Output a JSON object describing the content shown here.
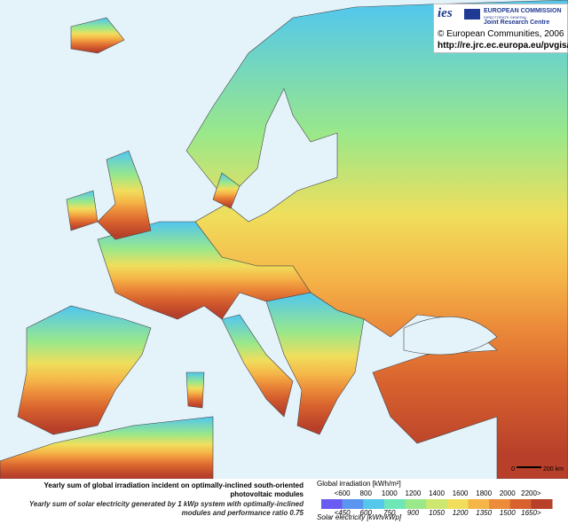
{
  "header": {
    "logo": "ies",
    "commission": "EUROPEAN COMMISSION",
    "directorate": "DIRECTORATE-GENERAL",
    "centre": "Joint Research Centre",
    "copyright": "© European Communities, 2006",
    "url": "http://re.jrc.ec.europa.eu/pvgis/"
  },
  "scale_bar": {
    "start": "0",
    "end": "200 km"
  },
  "captions": {
    "irradiation": "Yearly sum of global irradiation incident on optimally-inclined south-oriented photovoltaic modules",
    "electricity": "Yearly sum of solar electricity generated by 1 kWp system with optimally-inclined modules and performance ratio 0.75"
  },
  "legend": {
    "irradiation_title": "Global irradiation [kWh/m²]",
    "irradiation_labels": [
      "<600",
      "800",
      "1000",
      "1200",
      "1400",
      "1600",
      "1800",
      "2000",
      "2200>"
    ],
    "electricity_title": "Solar electricity [kWh/kWp]",
    "electricity_labels": [
      "<450",
      "600",
      "750",
      "900",
      "1050",
      "1200",
      "1350",
      "1500",
      "1650>"
    ],
    "colors": [
      "#6a5cf0",
      "#5a96f0",
      "#55c8ea",
      "#6ee6b8",
      "#9ae88a",
      "#cde870",
      "#f0de5c",
      "#f5b548",
      "#ec8c3a",
      "#d8622e",
      "#b8402a"
    ]
  }
}
